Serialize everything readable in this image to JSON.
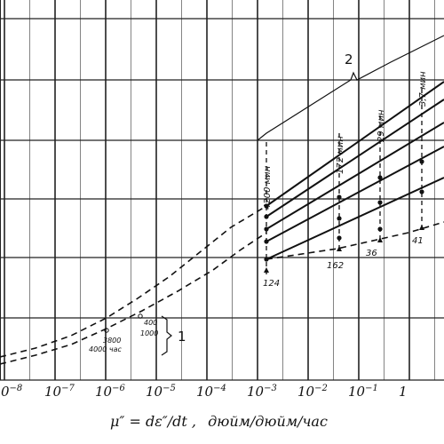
{
  "chart_data": {
    "type": "line",
    "x_scale": "log",
    "xlim": [
      1e-08,
      10
    ],
    "xlabel_lead": "μ″ = dε″/dt ,",
    "xlabel_units": "дюйм/дюйм/час",
    "x_tick_labels": [
      {
        "base": "0",
        "exp": "−8"
      },
      {
        "base": "10",
        "exp": "−7"
      },
      {
        "base": "10",
        "exp": "−6"
      },
      {
        "base": "10",
        "exp": "−5"
      },
      {
        "base": "10",
        "exp": "−4"
      },
      {
        "base": "10",
        "exp": "−3"
      },
      {
        "base": "10",
        "exp": "−2"
      },
      {
        "base": "10",
        "exp": "−1"
      },
      {
        "base": "1",
        "exp": ""
      }
    ],
    "grid": true,
    "time_labels": [
      "4200 мин",
      "172 мин",
      "29 мин",
      "3,7 мин"
    ],
    "point_labels": [
      "124",
      "162",
      "36",
      "41"
    ],
    "low_labels": [
      "400",
      "1000",
      "3800",
      "4000 час"
    ],
    "bracket_labels": [
      "1",
      "2"
    ]
  }
}
